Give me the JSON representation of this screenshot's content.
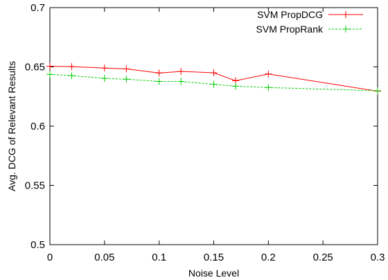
{
  "chart_data": {
    "type": "line",
    "title": "",
    "xlabel": "Noise Level",
    "ylabel": "Avg. DCG of Relevant Results",
    "xlim": [
      0,
      0.3
    ],
    "ylim": [
      0.5,
      0.7
    ],
    "xticks": [
      0,
      0.05,
      0.1,
      0.15,
      0.2,
      0.25,
      0.3
    ],
    "yticks": [
      0.5,
      0.55,
      0.6,
      0.65,
      0.7
    ],
    "xtick_labels": [
      "0",
      "0.05",
      "0.1",
      "0.15",
      "0.2",
      "0.25",
      "0.3"
    ],
    "ytick_labels": [
      "0.5",
      "0.55",
      "0.6",
      "0.65",
      "0.7"
    ],
    "legend_position": "top-right",
    "grid": false,
    "series": [
      {
        "name": "SVM PropDCG",
        "color": "#ff0000",
        "line_style": "solid",
        "marker": "plus",
        "x": [
          0,
          0.02,
          0.05,
          0.07,
          0.1,
          0.12,
          0.15,
          0.17,
          0.2,
          0.3
        ],
        "y": [
          0.6505,
          0.6502,
          0.649,
          0.6483,
          0.6448,
          0.6462,
          0.645,
          0.6383,
          0.644,
          0.6295
        ]
      },
      {
        "name": "SVM PropRank",
        "color": "#00cc00",
        "line_style": "dashed",
        "marker": "plus",
        "x": [
          0,
          0.02,
          0.05,
          0.07,
          0.1,
          0.12,
          0.15,
          0.17,
          0.2,
          0.3
        ],
        "y": [
          0.6437,
          0.6426,
          0.6403,
          0.6396,
          0.6377,
          0.6377,
          0.6353,
          0.6337,
          0.6326,
          0.6298
        ]
      }
    ]
  }
}
